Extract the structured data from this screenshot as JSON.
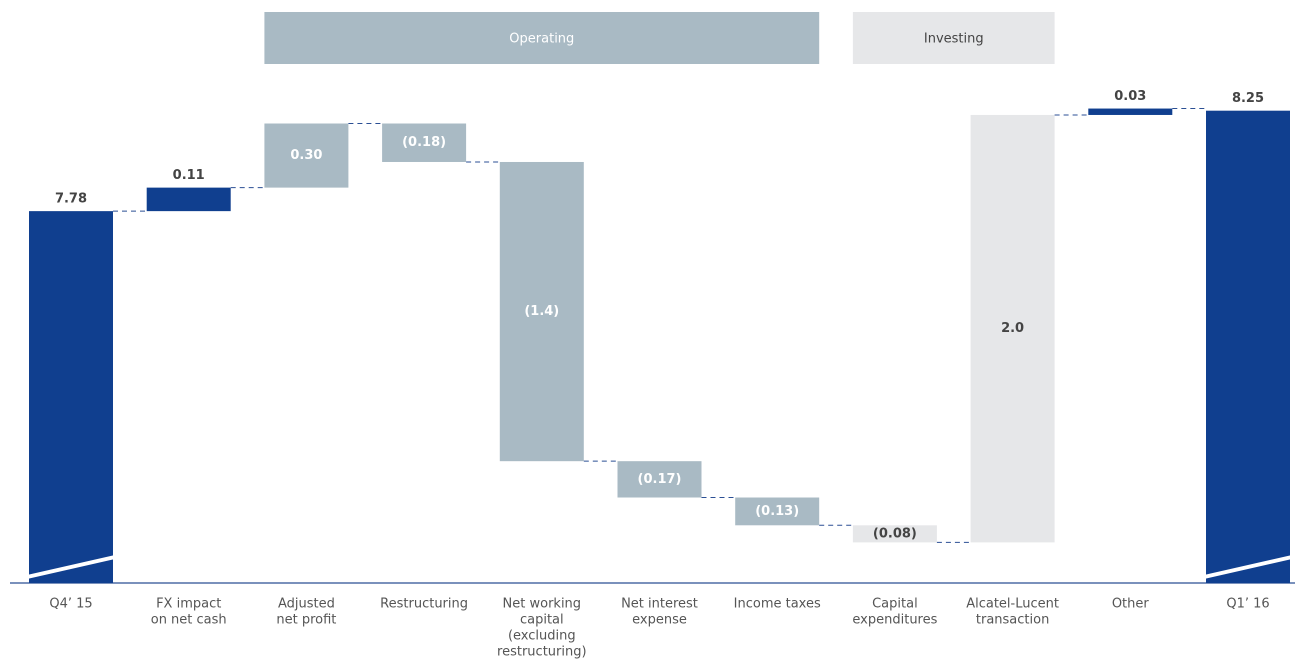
{
  "chart_data": {
    "type": "waterfall",
    "categories": [
      [
        "Q4’ 15"
      ],
      [
        "FX impact",
        "on net cash"
      ],
      [
        "Adjusted",
        "net profit"
      ],
      [
        "Restructuring"
      ],
      [
        "Net working",
        "capital",
        "(excluding",
        "restructuring)"
      ],
      [
        "Net interest",
        "expense"
      ],
      [
        "Income taxes"
      ],
      [
        "Capital",
        "expenditures"
      ],
      [
        "Alcatel-Lucent",
        "transaction"
      ],
      [
        "Other"
      ],
      [
        "Q1’ 16"
      ]
    ],
    "values": [
      7.78,
      0.11,
      0.3,
      -0.18,
      -1.4,
      -0.17,
      -0.13,
      -0.08,
      2.0,
      0.03,
      8.25
    ],
    "value_labels": [
      "7.78",
      "0.11",
      "0.30",
      "(0.18)",
      "(1.4)",
      "(0.17)",
      "(0.13)",
      "(0.08)",
      "2.0",
      "0.03",
      "8.25"
    ],
    "kinds": [
      "total",
      "delta",
      "delta",
      "delta",
      "delta",
      "delta",
      "delta",
      "delta",
      "delta",
      "delta",
      "total"
    ],
    "colors": [
      "#103f8f",
      "#103f8f",
      "#a9bac4",
      "#a9bac4",
      "#a9bac4",
      "#a9bac4",
      "#a9bac4",
      "#e6e7e9",
      "#e6e7e9",
      "#103f8f",
      "#103f8f"
    ],
    "groups": [
      {
        "label": "Operating",
        "from": 2,
        "to": 6,
        "color": "#a9bac4",
        "text_color": "#ffffff"
      },
      {
        "label": "Investing",
        "from": 7,
        "to": 8,
        "color": "#e6e7e9",
        "text_color": "#444444"
      }
    ],
    "ylim": [
      6.04,
      8.3
    ],
    "broken_axis": true
  }
}
